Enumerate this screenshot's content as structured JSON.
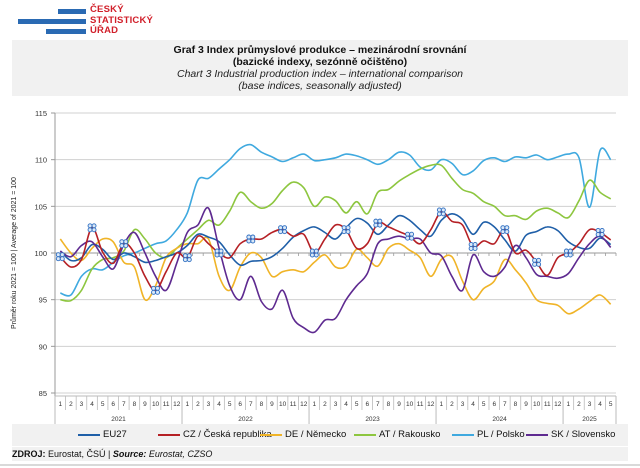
{
  "logo": {
    "lines": [
      "ČESKÝ",
      "STATISTICKÝ",
      "ÚŘAD"
    ]
  },
  "title": {
    "cz_line1": "Graf 3 Index průmyslové produkce – mezinárodní srovnání",
    "cz_line2": "(bazické indexy, sezónně očištěno)",
    "en_line1": "Chart 3 Industrial production index – international comparison",
    "en_line2": "(base indices, seasonally adjusted)"
  },
  "source": {
    "label_cz": "ZDROJ:",
    "text_cz": " Eurostat, ČSÚ | ",
    "label_en": "Source:",
    "text_en": " Eurostat, CZSO"
  },
  "chart_data": {
    "type": "line",
    "title": "Graf 3 Index průmyslové produkce – mezinárodní srovnání / Chart 3 Industrial production index – international comparison",
    "ylabel": "Průměr roku 2021 = 100 | Average of 2021 = 100",
    "xlabel": "",
    "ylim": [
      85,
      115
    ],
    "yticks": [
      85,
      90,
      95,
      100,
      105,
      110,
      115
    ],
    "grid": true,
    "legend_position": "bottom",
    "years": [
      {
        "label": "2021",
        "months": 12
      },
      {
        "label": "2022",
        "months": 12
      },
      {
        "label": "2023",
        "months": 12
      },
      {
        "label": "2024",
        "months": 12
      },
      {
        "label": "2025",
        "months": 5
      }
    ],
    "x": [
      "1",
      "2",
      "3",
      "4",
      "5",
      "6",
      "7",
      "8",
      "9",
      "10",
      "11",
      "12",
      "1",
      "2",
      "3",
      "4",
      "5",
      "6",
      "7",
      "8",
      "9",
      "10",
      "11",
      "12",
      "1",
      "2",
      "3",
      "4",
      "5",
      "6",
      "7",
      "8",
      "9",
      "10",
      "11",
      "12",
      "1",
      "2",
      "3",
      "4",
      "5",
      "6",
      "7",
      "8",
      "9",
      "10",
      "11",
      "12",
      "1",
      "2",
      "3",
      "4",
      "5"
    ],
    "marker_series": "CZ / Česká republika",
    "marker_every": 3,
    "series": [
      {
        "name": "EU27",
        "color": "#1f5fa8",
        "values": [
          100.2,
          99.2,
          99.5,
          100.9,
          100.4,
          99.3,
          100.0,
          99.6,
          99.0,
          99.2,
          99.6,
          100.0,
          100.8,
          102.0,
          101.7,
          101.2,
          99.8,
          98.7,
          99.1,
          99.2,
          99.6,
          100.5,
          101.7,
          102.4,
          102.8,
          102.2,
          101.5,
          102.7,
          103.7,
          103.2,
          102.0,
          103.0,
          104.0,
          103.5,
          102.5,
          101.8,
          103.5,
          104.2,
          103.6,
          102.0,
          103.3,
          102.8,
          101.4,
          100.2,
          101.9,
          102.3,
          102.8,
          102.4,
          101.2,
          100.6,
          100.5,
          101.6,
          100.9
        ]
      },
      {
        "name": "CZ / Česká republika",
        "color": "#b52025",
        "values": [
          99.6,
          98.5,
          99.3,
          102.7,
          100.1,
          98.9,
          101.0,
          100.0,
          97.5,
          96.0,
          98.0,
          100.0,
          99.5,
          101.8,
          101.0,
          100.0,
          99.5,
          101.0,
          101.5,
          101.5,
          102.2,
          102.5,
          101.8,
          102.0,
          100.0,
          101.5,
          103.0,
          102.5,
          100.5,
          101.0,
          103.2,
          102.8,
          102.3,
          101.8,
          101.0,
          102.5,
          104.4,
          103.4,
          103.0,
          100.7,
          101.3,
          101.0,
          102.5,
          100.0,
          100.3,
          99.0,
          97.6,
          99.5,
          100.0,
          101.0,
          102.5,
          102.2,
          101.4
        ]
      },
      {
        "name": "DE / Německo",
        "color": "#f0b428",
        "values": [
          101.5,
          100.0,
          99.2,
          100.5,
          101.5,
          101.2,
          99.0,
          98.5,
          95.0,
          96.5,
          99.5,
          100.5,
          101.0,
          101.0,
          101.5,
          97.5,
          96.0,
          98.5,
          100.0,
          99.5,
          97.5,
          98.0,
          98.2,
          98.0,
          99.0,
          99.8,
          98.5,
          98.6,
          100.4,
          99.5,
          98.6,
          100.5,
          101.0,
          100.3,
          99.5,
          97.5,
          99.3,
          99.6,
          97.0,
          95.0,
          96.2,
          97.0,
          99.3,
          98.2,
          96.8,
          95.0,
          94.6,
          94.4,
          93.5,
          94.0,
          94.8,
          95.5,
          94.5
        ]
      },
      {
        "name": "AT / Rakousko",
        "color": "#8dc63f",
        "values": [
          95.0,
          94.9,
          96.0,
          98.3,
          99.3,
          99.5,
          100.2,
          102.5,
          101.5,
          100.0,
          99.5,
          100.5,
          101.5,
          102.5,
          103.5,
          103.0,
          104.5,
          106.5,
          105.5,
          104.8,
          105.3,
          106.7,
          107.6,
          107.0,
          105.0,
          106.0,
          105.6,
          104.3,
          105.5,
          104.2,
          106.5,
          106.8,
          107.7,
          108.4,
          109.0,
          109.4,
          109.4,
          108.0,
          106.8,
          106.4,
          105.5,
          105.0,
          104.0,
          104.0,
          103.6,
          104.5,
          104.8,
          104.3,
          103.8,
          105.6,
          107.8,
          106.5,
          105.8
        ]
      },
      {
        "name": "PL / Polsko",
        "color": "#3fa9df",
        "values": [
          95.7,
          95.5,
          97.5,
          98.3,
          98.2,
          99.0,
          99.7,
          100.0,
          100.5,
          101.0,
          101.3,
          102.5,
          104.3,
          107.8,
          108.0,
          109.0,
          110.0,
          111.2,
          111.6,
          110.8,
          110.3,
          109.8,
          110.2,
          110.6,
          109.9,
          110.0,
          110.2,
          110.6,
          110.4,
          110.0,
          109.5,
          110.0,
          110.8,
          110.5,
          109.2,
          108.9,
          110.0,
          109.6,
          108.4,
          108.8,
          109.9,
          110.2,
          109.8,
          110.3,
          110.2,
          110.5,
          110.0,
          110.3,
          110.6,
          110.2,
          104.9,
          111.0,
          110.0
        ]
      },
      {
        "name": "SK / Slovensko",
        "color": "#5e2a90",
        "values": [
          100.2,
          99.6,
          100.8,
          101.2,
          99.6,
          98.3,
          100.9,
          102.2,
          100.0,
          97.5,
          96.0,
          98.9,
          102.2,
          103.0,
          104.8,
          100.5,
          96.5,
          95.0,
          97.5,
          94.8,
          94.0,
          96.0,
          93.0,
          92.0,
          91.5,
          92.8,
          93.0,
          95.0,
          96.5,
          97.8,
          101.0,
          101.5,
          101.8,
          101.5,
          101.5,
          100.0,
          99.7,
          97.5,
          96.0,
          99.8,
          98.0,
          97.5,
          98.5,
          100.8,
          99.5,
          97.7,
          97.5,
          97.3,
          97.8,
          99.5,
          101.0,
          101.8,
          100.6
        ]
      }
    ]
  },
  "legend": [
    {
      "label": "EU27",
      "color": "#1f5fa8"
    },
    {
      "label": "CZ / Česká republika",
      "color": "#b52025"
    },
    {
      "label": "DE / Německo",
      "color": "#f0b428"
    },
    {
      "label": "AT / Rakousko",
      "color": "#8dc63f"
    },
    {
      "label": "PL / Polsko",
      "color": "#3fa9df"
    },
    {
      "label": "SK / Slovensko",
      "color": "#5e2a90"
    }
  ]
}
